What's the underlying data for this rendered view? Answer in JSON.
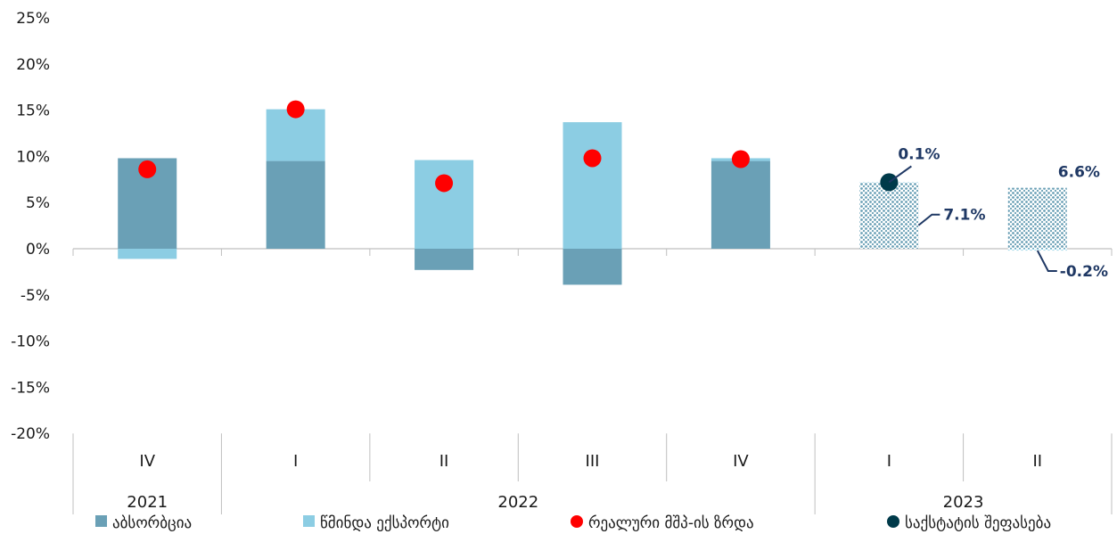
{
  "colors": {
    "absorption": "#6aa0b6",
    "net_export": "#8ccde3",
    "real_gdp": "#ff0000",
    "geostat": "#003a4a",
    "annotation": "#1f3864",
    "axis": "#bfbfbf"
  },
  "chart_data": {
    "type": "bar",
    "stacked": true,
    "ylim": [
      -20,
      25
    ],
    "yticks": [
      "25%",
      "20%",
      "15%",
      "10%",
      "5%",
      "0%",
      "-5%",
      "-10%",
      "-15%",
      "-20%"
    ],
    "ytick_values": [
      25,
      20,
      15,
      10,
      5,
      0,
      -5,
      -10,
      -15,
      -20
    ],
    "categories": [
      "IV",
      "I",
      "II",
      "III",
      "IV",
      "I",
      "II"
    ],
    "years": [
      {
        "label": "2021",
        "span": [
          0,
          0
        ]
      },
      {
        "label": "2022",
        "span": [
          1,
          4
        ]
      },
      {
        "label": "2023",
        "span": [
          5,
          6
        ]
      }
    ],
    "series": [
      {
        "name": "აბსორბცია",
        "key": "absorption",
        "values": [
          9.8,
          9.5,
          -2.3,
          -3.9,
          9.5,
          7.1,
          6.6
        ],
        "forecast_from": 5
      },
      {
        "name": "წმინდა ექსპორტი",
        "key": "net_export",
        "values": [
          -1.1,
          5.6,
          9.6,
          13.7,
          0.3,
          0.1,
          -0.2
        ],
        "forecast_from": 5
      },
      {
        "name": "რეალური მშპ-ის ზრდა",
        "key": "real_gdp",
        "type": "point",
        "values": [
          8.6,
          15.1,
          7.1,
          9.8,
          9.7,
          null,
          null
        ]
      },
      {
        "name": "საქსტატის შეფასება",
        "key": "geostat",
        "type": "point",
        "values": [
          null,
          null,
          null,
          null,
          null,
          7.2,
          null
        ]
      }
    ],
    "annotations": [
      {
        "text": "0.1%",
        "category": 5
      },
      {
        "text": "7.1%",
        "category": 5
      },
      {
        "text": "6.6%",
        "category": 6
      },
      {
        "text": "-0.2%",
        "category": 6
      }
    ],
    "legend_position": "bottom"
  }
}
